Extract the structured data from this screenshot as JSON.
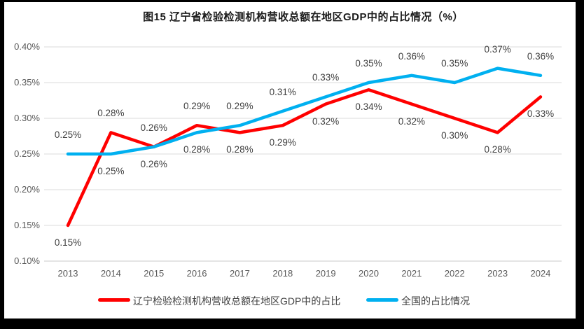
{
  "chart_data": {
    "type": "line",
    "title": "图15 辽宁省检验检测机构营收总额在地区GDP中的占比情况（%）",
    "categories": [
      "2013",
      "2014",
      "2015",
      "2016",
      "2017",
      "2018",
      "2019",
      "2020",
      "2021",
      "2022",
      "2023",
      "2024"
    ],
    "series": [
      {
        "name": "辽宁检验检测机构营收总额在地区GDP中的占比",
        "color": "#FF0000",
        "values": [
          0.15,
          0.28,
          0.26,
          0.29,
          0.28,
          0.29,
          0.32,
          0.34,
          0.32,
          0.3,
          0.28,
          0.33
        ],
        "labels": [
          "0.15%",
          "0.28%",
          "0.26%",
          "0.29%",
          "0.28%",
          "0.29%",
          "0.32%",
          "0.34%",
          "0.32%",
          "0.30%",
          "0.28%",
          "0.33%"
        ],
        "label_positions": [
          "below",
          "above",
          "above",
          "above",
          "below",
          "below",
          "below",
          "below",
          "below",
          "below",
          "below",
          "below"
        ]
      },
      {
        "name": "全国的占比情况",
        "color": "#00B0F0",
        "values": [
          0.25,
          0.25,
          0.26,
          0.28,
          0.29,
          0.31,
          0.33,
          0.35,
          0.36,
          0.35,
          0.37,
          0.36
        ],
        "labels": [
          "0.25%",
          "0.25%",
          "0.26%",
          "0.28%",
          "0.29%",
          "0.31%",
          "0.33%",
          "0.35%",
          "0.36%",
          "0.35%",
          "0.37%",
          "0.36%"
        ],
        "label_positions": [
          "above",
          "below",
          "below",
          "below",
          "above",
          "above",
          "above",
          "above",
          "above",
          "above",
          "above",
          "above"
        ]
      }
    ],
    "xlabel": "",
    "ylabel": "",
    "y_axis": {
      "min": 0.1,
      "max": 0.4,
      "step": 0.05,
      "tick_labels": [
        "0.40%",
        "0.35%",
        "0.30%",
        "0.25%",
        "0.20%",
        "0.15%",
        "0.10%"
      ]
    },
    "grid": true,
    "legend_position": "bottom",
    "colors": {
      "grid_line": "#DBDBDB",
      "axis_line": "#C9C9C9",
      "tick_text": "#595959",
      "label_text": "#3F3F3F",
      "background": "#FFFFFF",
      "frame": "#000000"
    }
  }
}
